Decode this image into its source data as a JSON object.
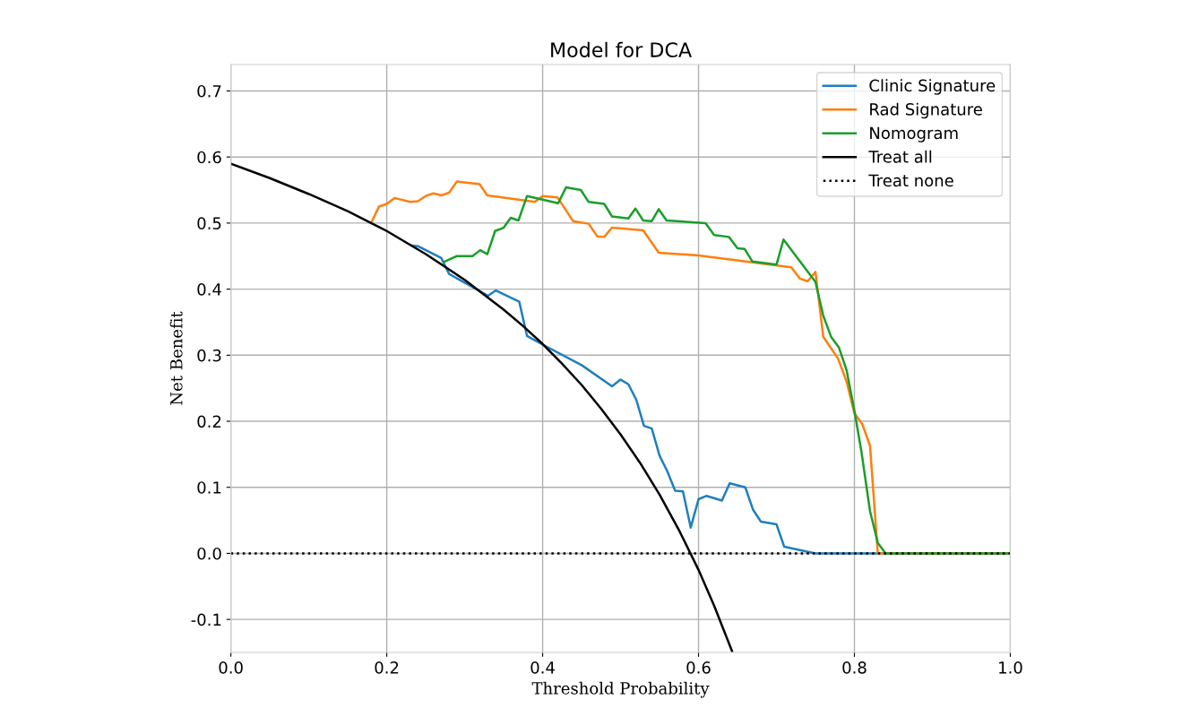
{
  "chart_data": {
    "type": "line",
    "title": "Model for DCA",
    "xlabel": "Threshold Probability",
    "ylabel": "Net Benefit",
    "xlim": [
      0,
      1
    ],
    "ylim": [
      -0.15,
      0.74
    ],
    "xticks": [
      {
        "value": 0,
        "label": "0.0"
      },
      {
        "value": 0.2,
        "label": "0.2"
      },
      {
        "value": 0.4,
        "label": "0.4"
      },
      {
        "value": 0.6,
        "label": "0.6"
      },
      {
        "value": 0.8,
        "label": "0.8"
      },
      {
        "value": 1,
        "label": "1.0"
      }
    ],
    "yticks": [
      {
        "value": -0.1,
        "label": "-0.1"
      },
      {
        "value": 0,
        "label": "0.0"
      },
      {
        "value": 0.1,
        "label": "0.1"
      },
      {
        "value": 0.2,
        "label": "0.2"
      },
      {
        "value": 0.3,
        "label": "0.3"
      },
      {
        "value": 0.4,
        "label": "0.4"
      },
      {
        "value": 0.5,
        "label": "0.5"
      },
      {
        "value": 0.6,
        "label": "0.6"
      },
      {
        "value": 0.7,
        "label": "0.7"
      }
    ],
    "grid": true,
    "legend": "top right",
    "series": [
      {
        "name": "Clinic Signature",
        "color": "#1f7fbf",
        "line_style": "solid",
        "x": [
          0.232,
          0.24,
          0.27,
          0.28,
          0.33,
          0.34,
          0.37,
          0.38,
          0.4,
          0.45,
          0.489,
          0.5,
          0.51,
          0.52,
          0.53,
          0.54,
          0.55,
          0.56,
          0.57,
          0.58,
          0.59,
          0.6,
          0.61,
          0.63,
          0.64,
          0.66,
          0.67,
          0.68,
          0.7,
          0.71,
          0.75,
          1.0
        ],
        "values": [
          0.466,
          0.465,
          0.447,
          0.423,
          0.39,
          0.398,
          0.381,
          0.329,
          0.316,
          0.285,
          0.253,
          0.263,
          0.256,
          0.233,
          0.193,
          0.189,
          0.148,
          0.124,
          0.095,
          0.094,
          0.039,
          0.082,
          0.087,
          0.08,
          0.106,
          0.1,
          0.066,
          0.048,
          0.044,
          0.01,
          0.0,
          0.0
        ]
      },
      {
        "name": "Rad Signature",
        "color": "#ff7f0e",
        "line_style": "solid",
        "x": [
          0.18,
          0.19,
          0.2,
          0.21,
          0.23,
          0.24,
          0.25,
          0.26,
          0.27,
          0.28,
          0.29,
          0.319,
          0.329,
          0.39,
          0.4,
          0.419,
          0.439,
          0.459,
          0.47,
          0.479,
          0.489,
          0.529,
          0.549,
          0.6,
          0.719,
          0.73,
          0.74,
          0.75,
          0.76,
          0.779,
          0.79,
          0.8,
          0.81,
          0.82,
          0.83,
          1.0
        ],
        "values": [
          0.5,
          0.525,
          0.529,
          0.538,
          0.532,
          0.533,
          0.541,
          0.545,
          0.542,
          0.546,
          0.563,
          0.559,
          0.542,
          0.532,
          0.541,
          0.539,
          0.503,
          0.499,
          0.48,
          0.479,
          0.493,
          0.489,
          0.455,
          0.451,
          0.433,
          0.416,
          0.412,
          0.426,
          0.328,
          0.295,
          0.26,
          0.212,
          0.196,
          0.163,
          0.0,
          0.0
        ]
      },
      {
        "name": "Nomogram",
        "color": "#1a9e2a",
        "line_style": "solid",
        "x": [
          0.273,
          0.29,
          0.31,
          0.32,
          0.329,
          0.339,
          0.35,
          0.359,
          0.369,
          0.38,
          0.42,
          0.43,
          0.449,
          0.459,
          0.479,
          0.489,
          0.51,
          0.519,
          0.529,
          0.54,
          0.549,
          0.559,
          0.609,
          0.62,
          0.639,
          0.65,
          0.659,
          0.669,
          0.7,
          0.709,
          0.75,
          0.76,
          0.77,
          0.78,
          0.79,
          0.8,
          0.809,
          0.82,
          0.83,
          0.84,
          1.0
        ],
        "values": [
          0.441,
          0.45,
          0.45,
          0.459,
          0.453,
          0.488,
          0.493,
          0.508,
          0.504,
          0.541,
          0.53,
          0.554,
          0.55,
          0.532,
          0.529,
          0.51,
          0.507,
          0.522,
          0.504,
          0.503,
          0.521,
          0.504,
          0.5,
          0.482,
          0.479,
          0.462,
          0.461,
          0.442,
          0.437,
          0.475,
          0.411,
          0.36,
          0.328,
          0.312,
          0.277,
          0.216,
          0.154,
          0.064,
          0.016,
          0.0,
          0.0
        ]
      },
      {
        "name": "Treat all",
        "color": "#000000",
        "line_style": "solid",
        "x": [
          0,
          0.05,
          0.1,
          0.15,
          0.2,
          0.25,
          0.3,
          0.35,
          0.375,
          0.4,
          0.425,
          0.45,
          0.475,
          0.5,
          0.525,
          0.55,
          0.575,
          0.6,
          0.62,
          0.643
        ],
        "values": [
          0.59,
          0.568,
          0.544,
          0.518,
          0.488,
          0.453,
          0.414,
          0.369,
          0.344,
          0.317,
          0.287,
          0.255,
          0.219,
          0.18,
          0.137,
          0.089,
          0.035,
          -0.025,
          -0.079,
          -0.148
        ]
      },
      {
        "name": "Treat none",
        "color": "#000000",
        "line_style": "dotted",
        "x": [
          0,
          1
        ],
        "values": [
          0,
          0
        ]
      }
    ]
  }
}
